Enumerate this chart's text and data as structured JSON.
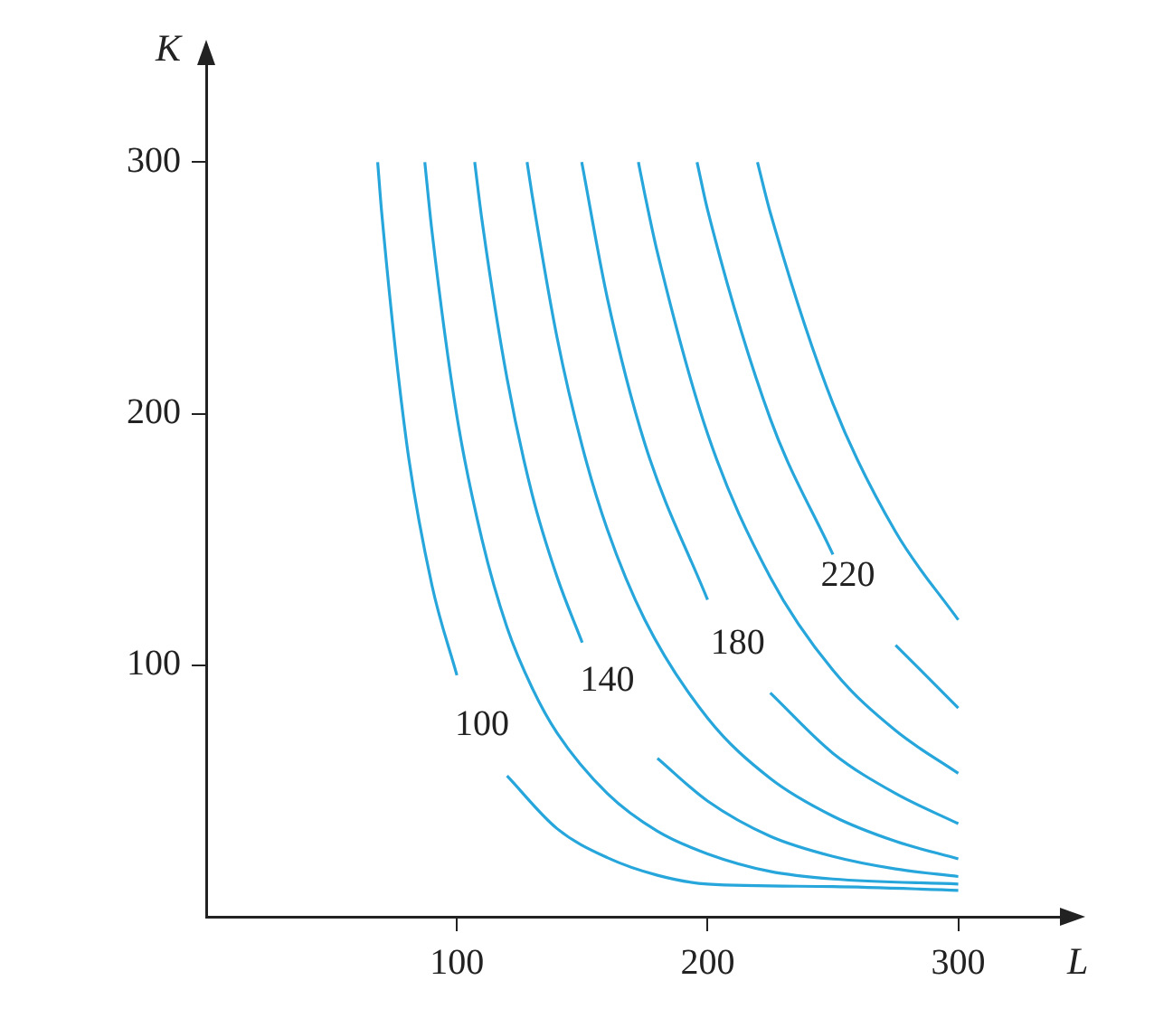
{
  "chart_data": {
    "type": "line",
    "xlabel": "L",
    "ylabel": "K",
    "xlim": [
      0,
      342
    ],
    "ylim": [
      0,
      340
    ],
    "xticks": [
      100,
      200,
      300
    ],
    "yticks": [
      100,
      200,
      300
    ],
    "marker": "none",
    "series": [
      {
        "name": "100",
        "color": "#27a6db",
        "x": [
          68.4,
          70,
          80,
          90,
          100,
          110,
          120,
          140,
          160,
          180,
          200,
          250,
          300
        ],
        "values": [
          300,
          280,
          188,
          132,
          96,
          null,
          56,
          35,
          23.5,
          16.5,
          13,
          12,
          10.5
        ]
      },
      {
        "color": "#27a6db",
        "x": [
          87.2,
          90,
          100,
          110,
          120,
          130,
          140,
          160,
          180,
          200,
          225,
          250,
          300
        ],
        "values": [
          300,
          273,
          199,
          150,
          115,
          91,
          73,
          49,
          34,
          25,
          18,
          15,
          13
        ]
      },
      {
        "name": "140",
        "color": "#27a6db",
        "x": [
          107.1,
          110,
          120,
          130,
          140,
          150,
          160,
          180,
          200,
          225,
          250,
          275,
          300
        ],
        "values": [
          300,
          277,
          214,
          168,
          135,
          109,
          null,
          63,
          46,
          32,
          24,
          19,
          16
        ]
      },
      {
        "color": "#27a6db",
        "x": [
          128,
          130,
          140,
          150,
          160,
          175,
          200,
          225,
          250,
          275,
          300
        ],
        "values": [
          300,
          287,
          230,
          187,
          154,
          118,
          79,
          55,
          40,
          30,
          23
        ]
      },
      {
        "name": "180",
        "color": "#27a6db",
        "x": [
          149.8,
          160,
          175,
          200,
          212,
          225,
          250,
          275,
          300
        ],
        "values": [
          300,
          246,
          188,
          126,
          null,
          89,
          65,
          49,
          37
        ]
      },
      {
        "color": "#27a6db",
        "x": [
          172.4,
          175,
          180,
          200,
          225,
          250,
          275,
          300
        ],
        "values": [
          300,
          287,
          264,
          192,
          135,
          98,
          74,
          57
        ]
      },
      {
        "name": "220",
        "color": "#27a6db",
        "x": [
          195.8,
          200,
          225,
          250,
          256,
          275,
          300
        ],
        "values": [
          300,
          281,
          198,
          144,
          null,
          108,
          83
        ]
      },
      {
        "color": "#27a6db",
        "x": [
          219.9,
          225,
          250,
          275,
          300
        ],
        "values": [
          300,
          280,
          204,
          153,
          118
        ]
      }
    ]
  }
}
